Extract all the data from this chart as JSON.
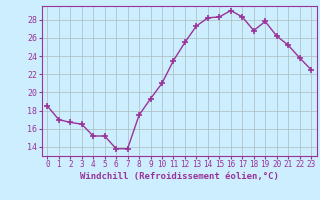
{
  "x": [
    0,
    1,
    2,
    3,
    4,
    5,
    6,
    7,
    8,
    9,
    10,
    11,
    12,
    13,
    14,
    15,
    16,
    17,
    18,
    19,
    20,
    21,
    22,
    23
  ],
  "y": [
    18.5,
    17.0,
    16.7,
    16.5,
    15.2,
    15.2,
    13.8,
    13.8,
    17.5,
    19.3,
    21.0,
    23.5,
    25.5,
    27.3,
    28.2,
    28.3,
    29.0,
    28.3,
    26.8,
    27.8,
    26.2,
    25.2,
    23.8,
    22.5
  ],
  "line_color": "#993399",
  "marker": "+",
  "marker_size": 5,
  "bg_color": "#cceeff",
  "grid_color": "#aabbbb",
  "xlabel": "Windchill (Refroidissement éolien,°C)",
  "xlim": [
    -0.5,
    23.5
  ],
  "ylim": [
    13.0,
    29.5
  ],
  "yticks": [
    14,
    16,
    18,
    20,
    22,
    24,
    26,
    28
  ],
  "xticks": [
    0,
    1,
    2,
    3,
    4,
    5,
    6,
    7,
    8,
    9,
    10,
    11,
    12,
    13,
    14,
    15,
    16,
    17,
    18,
    19,
    20,
    21,
    22,
    23
  ],
  "label_color": "#993399",
  "tick_color": "#993399",
  "axis_color": "#993399",
  "tick_fontsize": 5.5,
  "label_fontsize": 6.5
}
